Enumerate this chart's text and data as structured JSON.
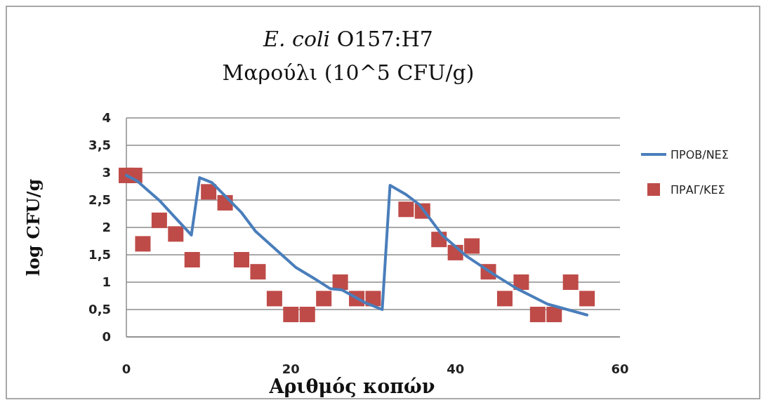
{
  "chart_data": {
    "type": "line",
    "title": "E. coli O157:H7\nΜαρούλι  (10^5 CFU/g)",
    "xlabel": "Αριθμός κοπών",
    "ylabel": "log CFU/g",
    "xlim": [
      0,
      60
    ],
    "xticks": [
      0,
      20,
      40,
      60
    ],
    "ylim": [
      0,
      4
    ],
    "yticks": [
      0,
      {
        "value": 0.5,
        "label": "0,5"
      },
      1,
      {
        "value": 1.5,
        "label": "1,5"
      },
      2,
      {
        "value": 2.5,
        "label": "2,5"
      },
      3,
      {
        "value": 3.5,
        "label": "3,5"
      },
      4
    ],
    "grid": "y",
    "legend": "right",
    "series": [
      {
        "name": "ΠΡΟΒ/ΝΕΣ",
        "color": "#4a7ebb",
        "marker": "none",
        "line_style": "solid",
        "x": [
          0,
          1.3,
          4.1,
          7.9,
          8.9,
          10.4,
          14,
          15.7,
          20.6,
          22.8,
          24.8,
          26.2,
          29.1,
          31.1,
          32.05,
          33.9,
          35.6,
          38.4,
          41.3,
          44.7,
          47.5,
          51.2,
          56
        ],
        "values": [
          2.95,
          2.85,
          2.48,
          1.86,
          2.91,
          2.82,
          2.27,
          1.93,
          1.27,
          1.07,
          0.88,
          0.86,
          0.62,
          0.5,
          2.77,
          2.61,
          2.42,
          1.86,
          1.48,
          1.14,
          0.88,
          0.6,
          0.4
        ]
      },
      {
        "name": "ΠΡΑΓ/ΚΕΣ",
        "type": "scatter",
        "color": "#be4b48",
        "marker": "square",
        "x": [
          0,
          1,
          2,
          4,
          6,
          8,
          10,
          12,
          14,
          16,
          18,
          20,
          22,
          24,
          26,
          28,
          30,
          34,
          36,
          38,
          40,
          42,
          44,
          46,
          48,
          50,
          52,
          54,
          56
        ],
        "values": [
          2.95,
          2.95,
          1.7,
          2.13,
          1.88,
          1.41,
          2.65,
          2.45,
          1.41,
          1.19,
          0.7,
          0.41,
          0.41,
          0.7,
          1.0,
          0.7,
          0.7,
          2.33,
          2.3,
          1.78,
          1.54,
          1.66,
          1.19,
          0.7,
          1.0,
          0.41,
          0.41,
          1.0,
          0.7
        ]
      }
    ]
  }
}
